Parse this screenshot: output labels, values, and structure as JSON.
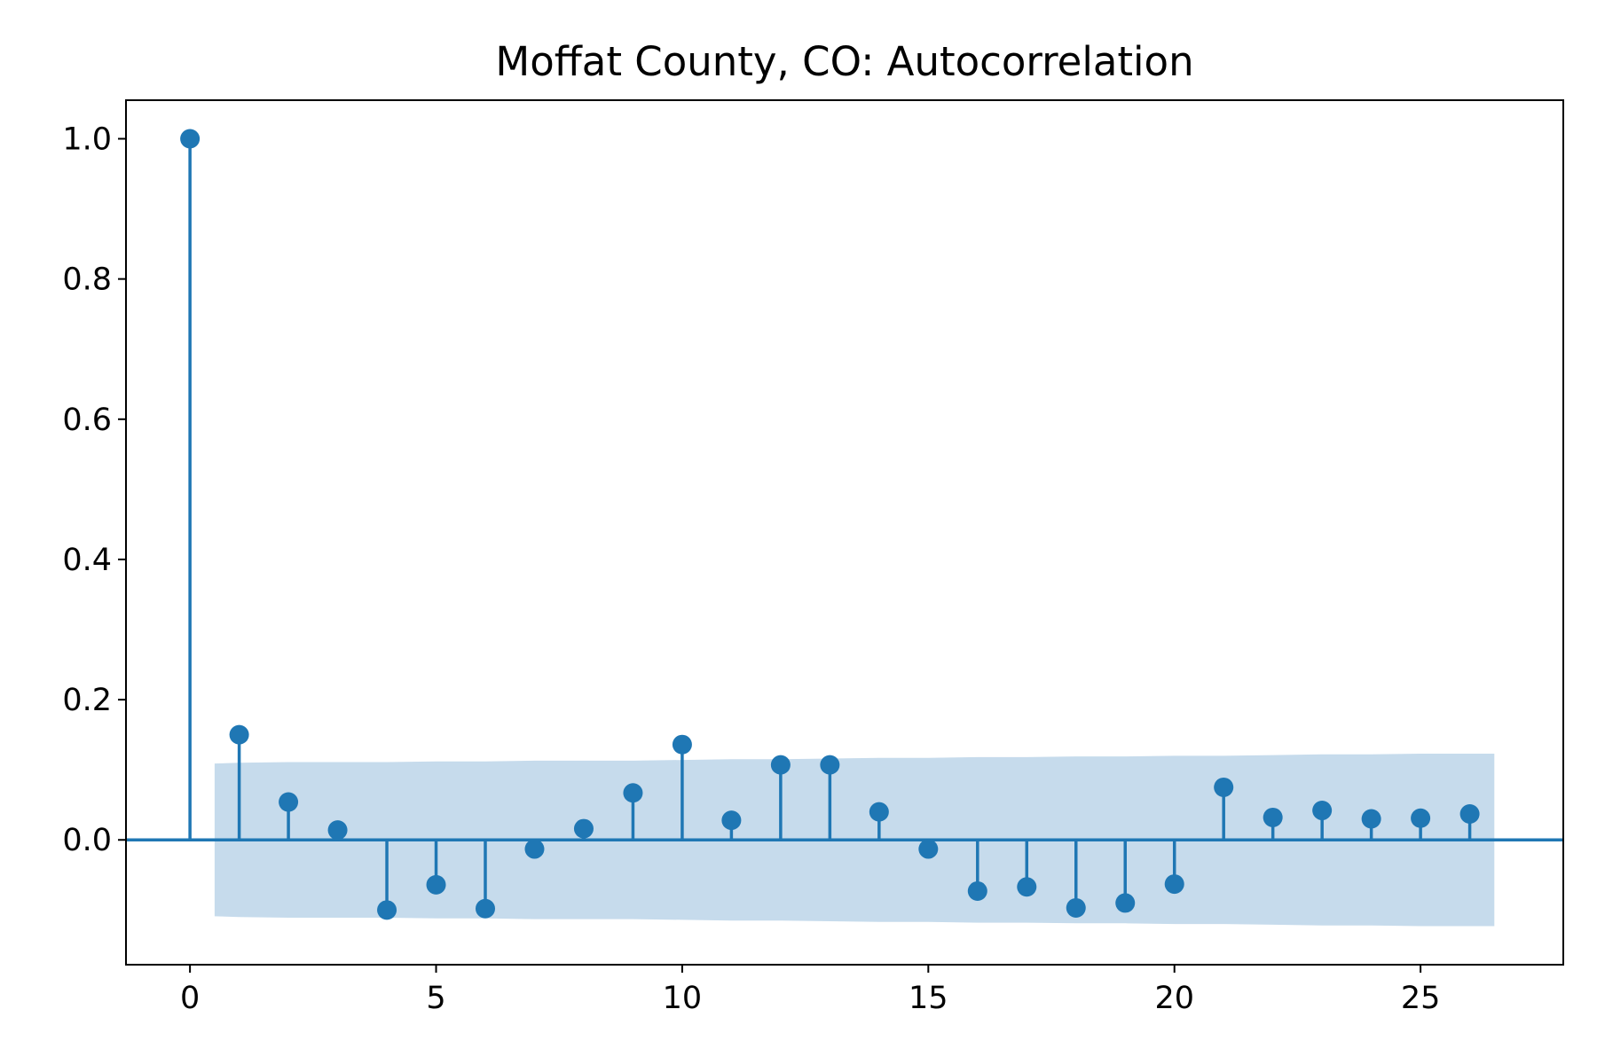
{
  "chart_data": {
    "type": "stem",
    "title": "Moffat County, CO: Autocorrelation",
    "xlabel": "",
    "ylabel": "",
    "xlim": [
      -1.3,
      27.9
    ],
    "ylim": [
      -0.178,
      1.055
    ],
    "xticks": [
      0,
      5,
      10,
      15,
      20,
      25
    ],
    "yticks": [
      0.0,
      0.2,
      0.4,
      0.6,
      0.8,
      1.0
    ],
    "ytick_labels": [
      "0.0",
      "0.2",
      "0.4",
      "0.6",
      "0.8",
      "1.0"
    ],
    "grid": false,
    "colors": {
      "marker": "#1f77b4",
      "confidence_band": "#c6dbec",
      "axes": "#000000"
    },
    "series": [
      {
        "lags": [
          0,
          1,
          2,
          3,
          4,
          5,
          6,
          7,
          8,
          9,
          10,
          11,
          12,
          13,
          14,
          15,
          16,
          17,
          18,
          19,
          20,
          21,
          22,
          23,
          24,
          25,
          26
        ],
        "values": [
          1.0,
          0.15,
          0.054,
          0.014,
          -0.1,
          -0.064,
          -0.098,
          -0.013,
          0.016,
          0.067,
          0.136,
          0.028,
          0.107,
          0.107,
          0.04,
          -0.013,
          -0.073,
          -0.067,
          -0.097,
          -0.09,
          -0.063,
          0.075,
          0.032,
          0.042,
          0.03,
          0.031,
          0.037
        ]
      }
    ],
    "confidence_band": {
      "x": [
        0.5,
        1,
        2,
        3,
        4,
        5,
        6,
        7,
        8,
        9,
        10,
        11,
        12,
        13,
        14,
        15,
        16,
        17,
        18,
        19,
        20,
        21,
        22,
        23,
        24,
        25,
        26,
        26.5
      ],
      "upper": [
        0.109,
        0.11,
        0.111,
        0.111,
        0.111,
        0.112,
        0.112,
        0.113,
        0.113,
        0.113,
        0.114,
        0.115,
        0.115,
        0.116,
        0.117,
        0.117,
        0.118,
        0.118,
        0.119,
        0.119,
        0.12,
        0.12,
        0.121,
        0.122,
        0.122,
        0.123,
        0.123,
        0.123
      ],
      "lower": [
        -0.109,
        -0.11,
        -0.111,
        -0.111,
        -0.111,
        -0.112,
        -0.112,
        -0.113,
        -0.113,
        -0.113,
        -0.114,
        -0.115,
        -0.115,
        -0.116,
        -0.117,
        -0.117,
        -0.118,
        -0.118,
        -0.119,
        -0.119,
        -0.12,
        -0.12,
        -0.121,
        -0.122,
        -0.122,
        -0.123,
        -0.123,
        -0.123
      ]
    }
  }
}
